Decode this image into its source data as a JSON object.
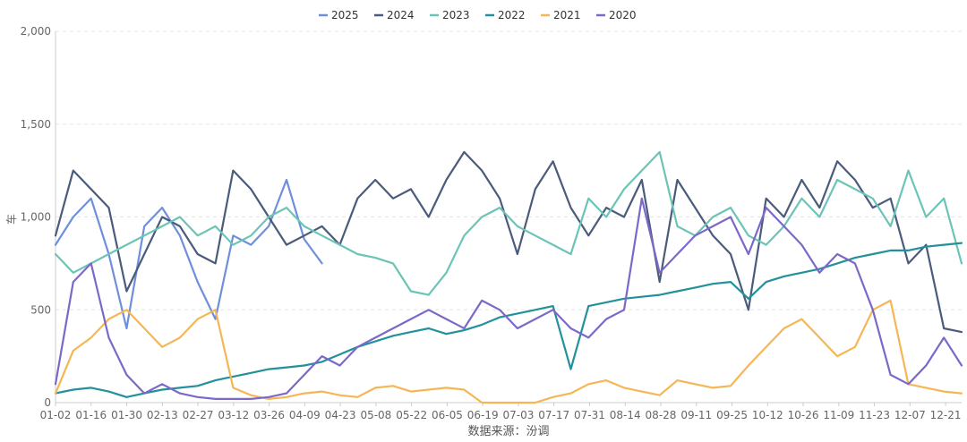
{
  "chart_data": {
    "type": "line",
    "ylabel": "车",
    "xlabel": "",
    "source": "数据来源：汾调",
    "ylim": [
      0,
      2000
    ],
    "yticks": [
      0,
      500,
      1000,
      1500,
      2000
    ],
    "ytick_labels": [
      "0",
      "500",
      "1,000",
      "1,500",
      "2,000"
    ],
    "grid": "horizontal dashed",
    "legend_position": "top-center",
    "xtick_labels": [
      "01-02",
      "01-16",
      "01-30",
      "02-13",
      "02-27",
      "03-12",
      "03-26",
      "04-09",
      "04-23",
      "05-08",
      "05-22",
      "06-05",
      "06-19",
      "07-03",
      "07-17",
      "07-31",
      "08-14",
      "08-28",
      "09-11",
      "09-25",
      "10-12",
      "10-26",
      "11-09",
      "11-23",
      "12-07",
      "12-21"
    ],
    "x": [
      "01-02",
      "01-09",
      "01-16",
      "01-23",
      "01-30",
      "02-06",
      "02-13",
      "02-20",
      "02-27",
      "03-05",
      "03-12",
      "03-19",
      "03-26",
      "04-02",
      "04-09",
      "04-16",
      "04-23",
      "04-30",
      "05-08",
      "05-15",
      "05-22",
      "05-29",
      "06-05",
      "06-12",
      "06-19",
      "06-26",
      "07-03",
      "07-10",
      "07-17",
      "07-24",
      "07-31",
      "08-07",
      "08-14",
      "08-21",
      "08-28",
      "09-04",
      "09-11",
      "09-18",
      "09-25",
      "10-05",
      "10-12",
      "10-19",
      "10-26",
      "11-02",
      "11-09",
      "11-16",
      "11-23",
      "11-30",
      "12-07",
      "12-14",
      "12-21",
      "12-28"
    ],
    "series": [
      {
        "name": "2025",
        "color": "#6f8fdc",
        "values": [
          850,
          1000,
          1100,
          800,
          400,
          950,
          1050,
          900,
          650,
          450,
          900,
          850,
          950,
          1200,
          880,
          750,
          null,
          null,
          null,
          null,
          null,
          null,
          null,
          null,
          null,
          null,
          null,
          null,
          null,
          null,
          null,
          null,
          null,
          null,
          null,
          null,
          null,
          null,
          null,
          null,
          null,
          null,
          null,
          null,
          null,
          null,
          null,
          null,
          null,
          null,
          null,
          null
        ]
      },
      {
        "name": "2024",
        "color": "#4b5b7c",
        "values": [
          900,
          1250,
          1150,
          1050,
          600,
          800,
          1000,
          950,
          800,
          750,
          1250,
          1150,
          1000,
          850,
          900,
          950,
          850,
          1100,
          1200,
          1100,
          1150,
          1000,
          1200,
          1350,
          1250,
          1100,
          800,
          1150,
          1300,
          1050,
          900,
          1050,
          1000,
          1200,
          650,
          1200,
          1050,
          900,
          800,
          500,
          1100,
          1000,
          1200,
          1050,
          1300,
          1200,
          1050,
          1100,
          750,
          850,
          400,
          380
        ]
      },
      {
        "name": "2023",
        "color": "#6cc4b6",
        "values": [
          800,
          700,
          750,
          800,
          850,
          900,
          950,
          1000,
          900,
          950,
          850,
          900,
          1000,
          1050,
          950,
          900,
          850,
          800,
          780,
          750,
          600,
          580,
          700,
          900,
          1000,
          1050,
          950,
          900,
          850,
          800,
          1100,
          1000,
          1150,
          1250,
          1350,
          950,
          900,
          1000,
          1050,
          900,
          850,
          950,
          1100,
          1000,
          1200,
          1150,
          1100,
          950,
          1250,
          1000,
          1100,
          750
        ]
      },
      {
        "name": "2022",
        "color": "#22919b",
        "values": [
          50,
          70,
          80,
          60,
          30,
          50,
          70,
          80,
          90,
          120,
          140,
          160,
          180,
          190,
          200,
          220,
          260,
          300,
          330,
          360,
          380,
          400,
          370,
          390,
          420,
          460,
          480,
          500,
          520,
          180,
          520,
          540,
          560,
          570,
          580,
          600,
          620,
          640,
          650,
          560,
          650,
          680,
          700,
          720,
          750,
          780,
          800,
          820,
          820,
          840,
          850,
          860
        ]
      },
      {
        "name": "2021",
        "color": "#f5b656",
        "values": [
          50,
          280,
          350,
          450,
          500,
          400,
          300,
          350,
          450,
          500,
          80,
          40,
          20,
          30,
          50,
          60,
          40,
          30,
          80,
          90,
          60,
          70,
          80,
          70,
          0,
          0,
          0,
          0,
          30,
          50,
          100,
          120,
          80,
          60,
          40,
          120,
          100,
          80,
          90,
          200,
          300,
          400,
          450,
          350,
          250,
          300,
          500,
          550,
          100,
          80,
          60,
          50
        ]
      },
      {
        "name": "2020",
        "color": "#7c68c8",
        "values": [
          100,
          650,
          750,
          350,
          150,
          50,
          100,
          50,
          30,
          20,
          20,
          20,
          30,
          50,
          150,
          250,
          200,
          300,
          350,
          400,
          450,
          500,
          450,
          400,
          550,
          500,
          400,
          450,
          500,
          400,
          350,
          450,
          500,
          1100,
          700,
          800,
          900,
          950,
          1000,
          800,
          1050,
          950,
          850,
          700,
          800,
          750,
          500,
          150,
          100,
          200,
          350,
          200
        ]
      }
    ]
  }
}
